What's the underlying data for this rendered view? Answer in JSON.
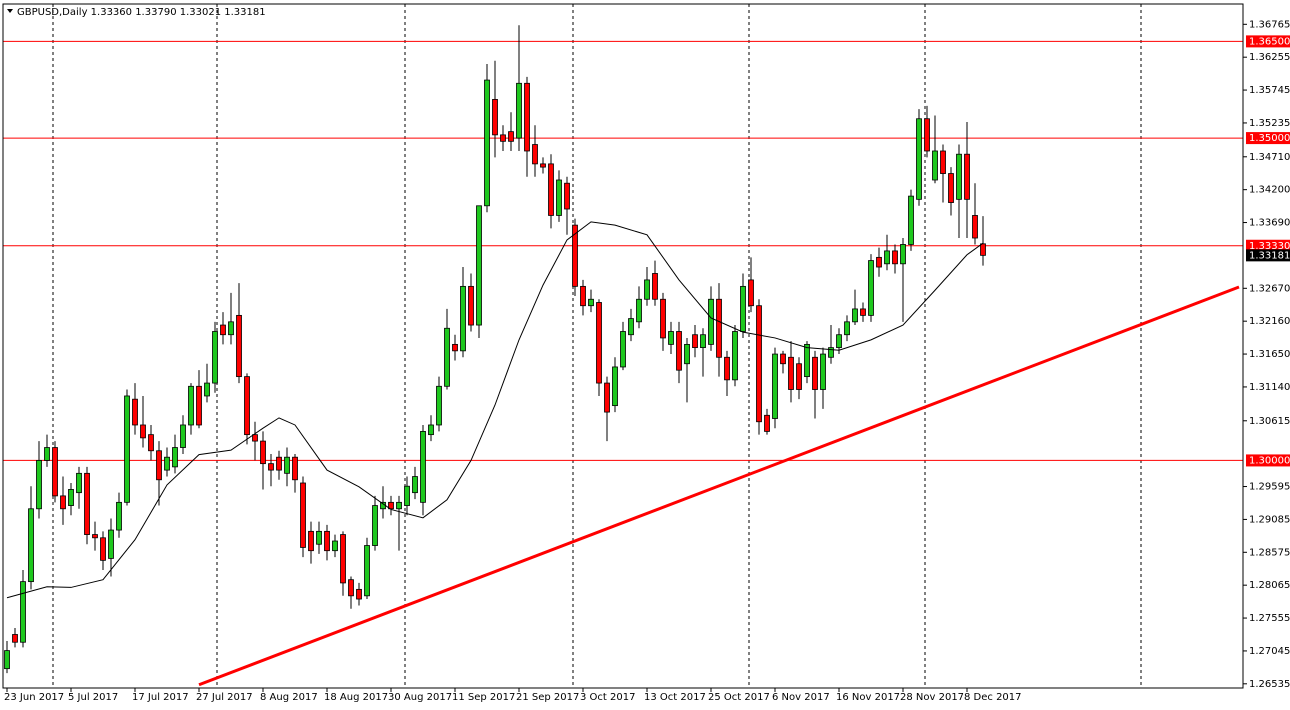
{
  "chart_data": {
    "type": "candlestick",
    "header": "GBPUSD,Daily 1.33360 1.33790 1.33021 1.33181",
    "categories": [
      "23 Jun 2017",
      null,
      null,
      null,
      null,
      null,
      null,
      null,
      "5 Jul 2017",
      null,
      null,
      null,
      null,
      null,
      null,
      null,
      "17 Jul 2017",
      null,
      null,
      null,
      null,
      null,
      null,
      null,
      "27 Jul 2017",
      null,
      null,
      null,
      null,
      null,
      null,
      null,
      "8 Aug 2017",
      null,
      null,
      null,
      null,
      null,
      null,
      null,
      "18 Aug 2017",
      null,
      null,
      null,
      null,
      null,
      null,
      null,
      "30 Aug 2017",
      null,
      null,
      null,
      null,
      null,
      null,
      null,
      "11 Sep 2017",
      null,
      null,
      null,
      null,
      null,
      null,
      null,
      "21 Sep 2017",
      null,
      null,
      null,
      null,
      null,
      null,
      null,
      "3 Oct 2017",
      null,
      null,
      null,
      null,
      null,
      null,
      null,
      "13 Oct 2017",
      null,
      null,
      null,
      null,
      null,
      null,
      null,
      "25 Oct 2017",
      null,
      null,
      null,
      null,
      null,
      null,
      null,
      "6 Nov 2017",
      null,
      null,
      null,
      null,
      null,
      null,
      null,
      "16 Nov 2017",
      null,
      null,
      null,
      null,
      null,
      null,
      null,
      "28 Nov 2017",
      null,
      null,
      null,
      null,
      null,
      null,
      null,
      "8 Dec 2017",
      null,
      null
    ],
    "open": [
      1.2677,
      1.273,
      1.2718,
      1.2812,
      1.2925,
      1.3,
      1.302,
      1.2945,
      1.293,
      1.295,
      1.298,
      1.2885,
      1.288,
      1.2848,
      1.2892,
      1.2935,
      1.3095,
      1.3055,
      1.304,
      1.3015,
      1.2985,
      1.299,
      1.302,
      1.3055,
      1.3115,
      1.31,
      1.312,
      1.321,
      1.3195,
      1.3225,
      1.313,
      1.304,
      1.303,
      1.2995,
      1.3005,
      1.298,
      1.3005,
      1.2965,
      1.289,
      1.287,
      1.289,
      1.286,
      1.2885,
      1.2815,
      1.28,
      1.279,
      1.2868,
      1.2925,
      1.2935,
      1.2925,
      1.293,
      1.295,
      1.2935,
      1.304,
      1.3055,
      1.3115,
      1.318,
      1.317,
      1.327,
      1.321,
      1.3395,
      1.356,
      1.3505,
      1.351,
      1.35,
      1.3585,
      1.349,
      1.346,
      1.346,
      1.338,
      1.343,
      1.3365,
      1.327,
      1.324,
      1.3245,
      1.312,
      1.3085,
      1.3145,
      1.3195,
      1.3215,
      1.325,
      1.329,
      1.325,
      1.318,
      1.32,
      1.315,
      1.3195,
      1.3175,
      1.318,
      1.325,
      1.316,
      1.3125,
      1.32,
      1.328,
      1.324,
      1.307,
      1.3065,
      1.3165,
      1.316,
      1.315,
      1.313,
      1.316,
      1.311,
      1.316,
      1.3175,
      1.3195,
      1.3215,
      1.3235,
      1.3225,
      1.3315,
      1.3305,
      1.3325,
      1.3305,
      1.3335,
      1.3405,
      1.353,
      1.3435,
      1.348,
      1.3445,
      1.3405,
      1.3475,
      1.338,
      1.3336
    ],
    "high": [
      1.272,
      1.274,
      1.283,
      1.296,
      1.303,
      1.304,
      1.303,
      1.2975,
      1.2965,
      1.299,
      1.299,
      1.2905,
      1.289,
      1.291,
      1.295,
      1.311,
      1.312,
      1.31,
      1.3055,
      1.303,
      1.302,
      1.304,
      1.307,
      1.312,
      1.314,
      1.315,
      1.3215,
      1.323,
      1.326,
      1.3275,
      1.3135,
      1.306,
      1.3045,
      1.301,
      1.3015,
      1.302,
      1.301,
      1.2975,
      1.2905,
      1.2905,
      1.29,
      1.2885,
      1.289,
      1.282,
      1.281,
      1.288,
      1.2945,
      1.296,
      1.2945,
      1.2945,
      1.2975,
      1.299,
      1.3055,
      1.307,
      1.313,
      1.3235,
      1.3195,
      1.33,
      1.329,
      1.3395,
      1.3615,
      1.362,
      1.352,
      1.354,
      1.3675,
      1.3595,
      1.352,
      1.347,
      1.3475,
      1.345,
      1.344,
      1.3375,
      1.328,
      1.3265,
      1.325,
      1.313,
      1.316,
      1.3215,
      1.3235,
      1.327,
      1.33,
      1.331,
      1.326,
      1.3215,
      1.3215,
      1.319,
      1.321,
      1.3205,
      1.327,
      1.3275,
      1.317,
      1.321,
      1.329,
      1.3315,
      1.325,
      1.308,
      1.3175,
      1.317,
      1.3185,
      1.316,
      1.3185,
      1.317,
      1.3175,
      1.321,
      1.3205,
      1.3225,
      1.3265,
      1.3245,
      1.332,
      1.333,
      1.335,
      1.3335,
      1.3345,
      1.342,
      1.3545,
      1.355,
      1.3535,
      1.349,
      1.3455,
      1.349,
      1.3525,
      1.343,
      1.3379
    ],
    "low": [
      1.267,
      1.271,
      1.271,
      1.28,
      1.291,
      1.299,
      1.2935,
      1.29,
      1.2915,
      1.2925,
      1.287,
      1.286,
      1.283,
      1.282,
      1.288,
      1.293,
      1.304,
      1.302,
      1.3,
      1.293,
      1.2975,
      1.298,
      1.301,
      1.304,
      1.305,
      1.309,
      1.3105,
      1.318,
      1.318,
      1.312,
      1.3025,
      1.3,
      1.2955,
      1.296,
      1.297,
      1.296,
      1.295,
      1.285,
      1.284,
      1.2855,
      1.2845,
      1.285,
      1.279,
      1.277,
      1.2775,
      1.2785,
      1.286,
      1.291,
      1.2915,
      1.286,
      1.2915,
      1.294,
      1.2915,
      1.303,
      1.3045,
      1.311,
      1.3155,
      1.316,
      1.32,
      1.319,
      1.3385,
      1.347,
      1.348,
      1.348,
      1.348,
      1.344,
      1.344,
      1.3445,
      1.336,
      1.337,
      1.335,
      1.3255,
      1.3225,
      1.323,
      1.31,
      1.303,
      1.3075,
      1.314,
      1.3185,
      1.3205,
      1.324,
      1.324,
      1.317,
      1.3165,
      1.312,
      1.309,
      1.316,
      1.313,
      1.317,
      1.313,
      1.31,
      1.3115,
      1.319,
      1.323,
      1.304,
      1.304,
      1.305,
      1.3135,
      1.309,
      1.3095,
      1.312,
      1.3065,
      1.308,
      1.315,
      1.3165,
      1.3185,
      1.321,
      1.3215,
      1.3215,
      1.3285,
      1.3295,
      1.329,
      1.3215,
      1.3325,
      1.3395,
      1.347,
      1.343,
      1.34,
      1.338,
      1.3345,
      1.3345,
      1.3335,
      1.33021
    ],
    "close": [
      1.2705,
      1.2718,
      1.2812,
      1.2925,
      1.3,
      1.302,
      1.2945,
      1.2925,
      1.2955,
      1.298,
      1.2885,
      1.288,
      1.2845,
      1.2892,
      1.2935,
      1.31,
      1.3055,
      1.3035,
      1.3015,
      1.297,
      1.3005,
      1.302,
      1.3055,
      1.3115,
      1.3055,
      1.312,
      1.32,
      1.3195,
      1.3215,
      1.313,
      1.304,
      1.303,
      1.2995,
      1.2985,
      1.2985,
      1.3005,
      1.297,
      1.2865,
      1.286,
      1.289,
      1.286,
      1.2875,
      1.281,
      1.279,
      1.2785,
      1.2868,
      1.293,
      1.2935,
      1.2925,
      1.2935,
      1.296,
      1.2975,
      1.3045,
      1.3055,
      1.3115,
      1.3205,
      1.317,
      1.327,
      1.321,
      1.3395,
      1.359,
      1.3505,
      1.3495,
      1.3495,
      1.3585,
      1.348,
      1.346,
      1.3455,
      1.338,
      1.3435,
      1.339,
      1.327,
      1.324,
      1.325,
      1.312,
      1.3075,
      1.3145,
      1.32,
      1.322,
      1.325,
      1.328,
      1.325,
      1.319,
      1.32,
      1.314,
      1.318,
      1.3175,
      1.3195,
      1.325,
      1.316,
      1.3125,
      1.32,
      1.327,
      1.324,
      1.306,
      1.3045,
      1.3165,
      1.315,
      1.311,
      1.311,
      1.318,
      1.311,
      1.3165,
      1.3175,
      1.3195,
      1.3215,
      1.3235,
      1.3225,
      1.331,
      1.33,
      1.3325,
      1.3305,
      1.3335,
      1.341,
      1.353,
      1.348,
      1.348,
      1.3445,
      1.34,
      1.3475,
      1.3405,
      1.3345,
      1.33181
    ],
    "up_color": "#1ec81e",
    "down_color": "#ff0000",
    "moving_average": {
      "color": "#000000",
      "x": [
        0,
        5,
        8,
        12,
        16,
        20,
        24,
        28,
        32,
        34,
        36,
        40,
        44,
        48,
        52,
        55,
        58,
        61,
        64,
        67,
        70,
        73,
        76,
        80,
        84,
        88,
        92,
        96,
        100,
        104,
        108,
        112,
        116,
        120,
        122
      ],
      "values": [
        1.2787,
        1.2804,
        1.2803,
        1.2815,
        1.2877,
        1.2962,
        1.3009,
        1.3016,
        1.305,
        1.3066,
        1.3055,
        1.2985,
        1.2959,
        1.2924,
        1.2911,
        1.2939,
        1.3,
        1.3086,
        1.3187,
        1.3272,
        1.3342,
        1.337,
        1.3365,
        1.335,
        1.328,
        1.3221,
        1.3199,
        1.319,
        1.3175,
        1.3171,
        1.3187,
        1.321,
        1.3264,
        1.3319,
        1.3337
      ]
    },
    "trendline": {
      "color": "#ff0000",
      "x": [
        24,
        154
      ],
      "values": [
        1.2652,
        1.3269
      ]
    },
    "levels": [
      {
        "value": 1.365,
        "label": "1.36500"
      },
      {
        "value": 1.35,
        "label": "1.35000"
      },
      {
        "value": 1.3333,
        "label": "1.33330"
      },
      {
        "value": 1.3,
        "label": "1.30000"
      }
    ],
    "level_color": "#ff0000",
    "last_price": 1.33181,
    "ylim": [
      1.2647,
      1.3708
    ],
    "yticks": [
      1.36765,
      1.36255,
      1.35745,
      1.35235,
      {
        "value": 1.3471,
        "label": "1.34710"
      },
      {
        "value": 1.342,
        "label": "1.34200"
      },
      {
        "value": 1.3369,
        "label": "1.33690"
      },
      {
        "value": 1.3267,
        "label": "1.32670"
      },
      {
        "value": 1.3216,
        "label": "1.32160"
      },
      {
        "value": 1.3165,
        "label": "1.31650"
      },
      {
        "value": 1.3114,
        "label": "1.31140"
      },
      1.30615,
      1.29595,
      1.29085,
      1.28575,
      1.28065,
      1.27555,
      1.27045,
      1.26535
    ]
  }
}
